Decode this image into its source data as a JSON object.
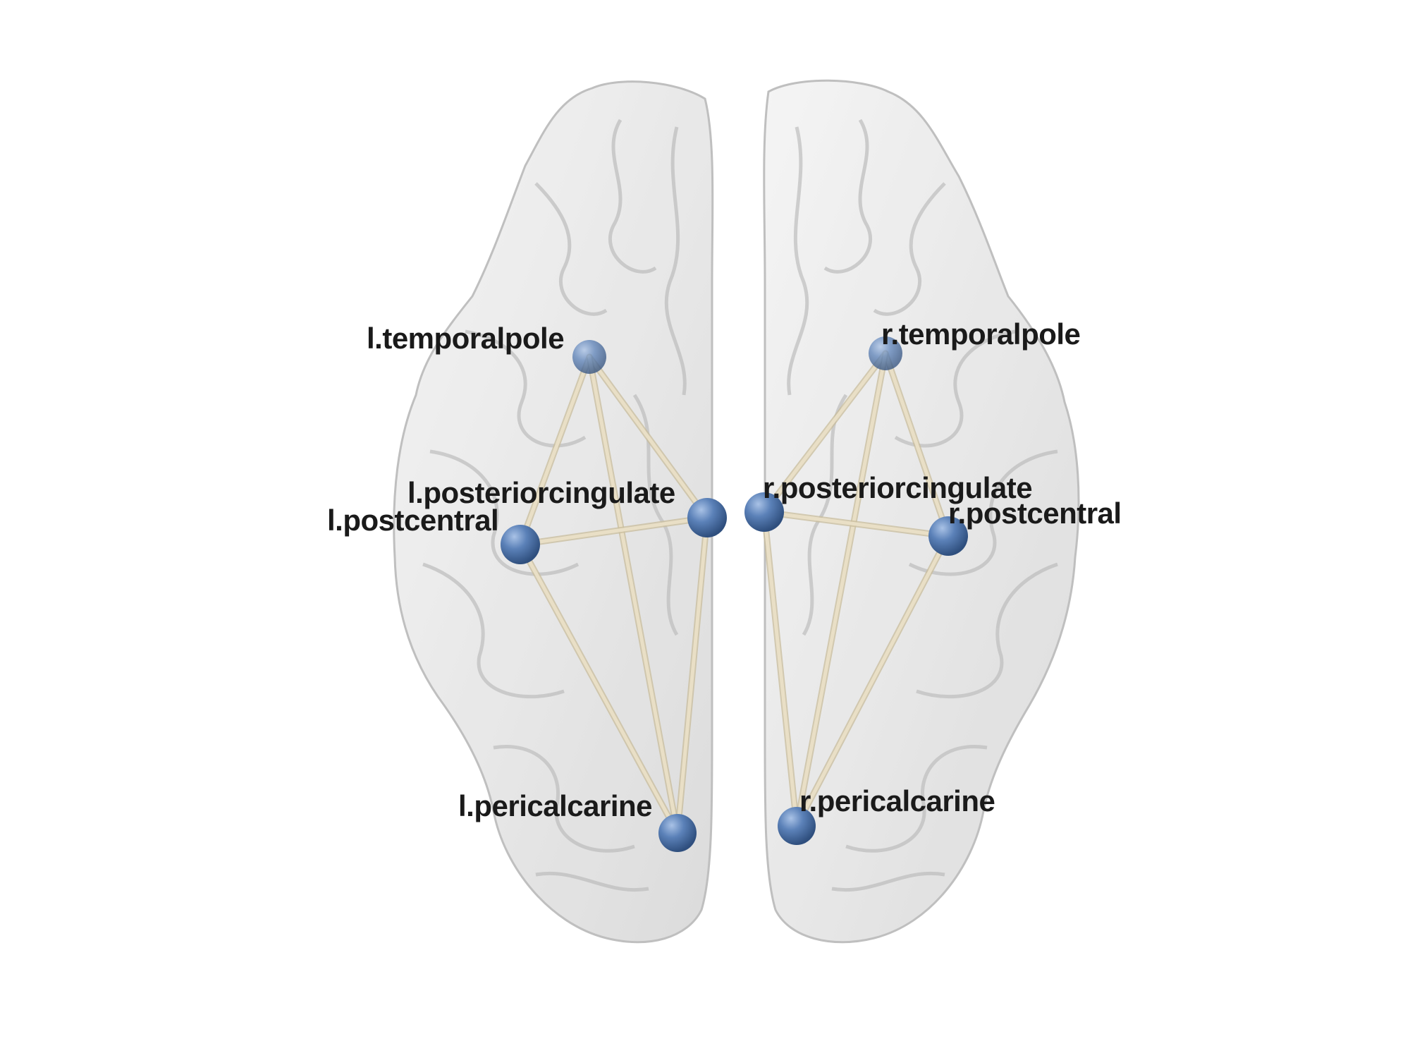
{
  "colors": {
    "background": "#ffffff",
    "brain_fill": "#e4e4e4",
    "brain_stroke": "#b9b9b9",
    "node": "#5b81b8",
    "edge": "#e9dfc6"
  },
  "nodes": {
    "l_temporalpole": {
      "label": "l.temporalpole"
    },
    "r_temporalpole": {
      "label": "r.temporalpole"
    },
    "l_posteriorcingulate": {
      "label": "l.posteriorcingulate"
    },
    "r_posteriorcingulate": {
      "label": "r.posteriorcingulate"
    },
    "l_postcentral": {
      "label": "l.postcentral"
    },
    "r_postcentral": {
      "label": "r.postcentral"
    },
    "l_pericalcarine": {
      "label": "l.pericalcarine"
    },
    "r_pericalcarine": {
      "label": "r.pericalcarine"
    }
  },
  "edges": [
    [
      "l_temporalpole",
      "l_postcentral"
    ],
    [
      "l_temporalpole",
      "l_posteriorcingulate"
    ],
    [
      "l_temporalpole",
      "l_pericalcarine"
    ],
    [
      "l_postcentral",
      "l_posteriorcingulate"
    ],
    [
      "l_postcentral",
      "l_pericalcarine"
    ],
    [
      "l_posteriorcingulate",
      "l_pericalcarine"
    ],
    [
      "r_temporalpole",
      "r_posteriorcingulate"
    ],
    [
      "r_temporalpole",
      "r_postcentral"
    ],
    [
      "r_temporalpole",
      "r_pericalcarine"
    ],
    [
      "r_posteriorcingulate",
      "r_postcentral"
    ],
    [
      "r_posteriorcingulate",
      "r_pericalcarine"
    ],
    [
      "r_postcentral",
      "r_pericalcarine"
    ]
  ]
}
